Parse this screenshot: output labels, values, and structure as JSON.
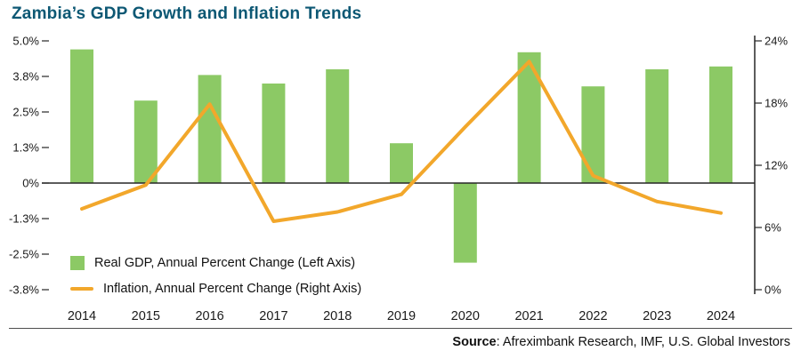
{
  "title": "Zambia’s GDP Growth and Inflation Trends",
  "legend": {
    "gdp": "Real GDP, Annual Percent Change (Left Axis)",
    "inflation": "Inflation, Annual Percent Change (Right Axis)"
  },
  "source": {
    "label": "Source",
    "text": ": Afreximbank Research, IMF, U.S. Global Investors"
  },
  "colors": {
    "title": "#0d5874",
    "bar": "#8cc965",
    "line": "#f2a72b",
    "axis": "#262626",
    "tick_text": "#1a1a1a"
  },
  "chart_data": {
    "type": "bar",
    "subtype": "combo-bar-line",
    "title": "Zambia’s GDP Growth and Inflation Trends",
    "categories": [
      "2014",
      "2015",
      "2016",
      "2017",
      "2018",
      "2019",
      "2020",
      "2021",
      "2022",
      "2023",
      "2024"
    ],
    "series": [
      {
        "name": "Real GDP, Annual Percent Change",
        "type": "bar",
        "axis": "left",
        "values": [
          4.7,
          2.9,
          3.8,
          3.5,
          4.0,
          1.4,
          -2.8,
          4.6,
          3.4,
          4.0,
          4.1
        ]
      },
      {
        "name": "Inflation, Annual Percent Change",
        "type": "line",
        "axis": "right",
        "values": [
          7.8,
          10.1,
          17.9,
          6.6,
          7.5,
          9.2,
          15.7,
          22.0,
          11.0,
          8.5,
          7.4
        ]
      }
    ],
    "left_axis": {
      "ticks": [
        "5.0%",
        "3.8%",
        "2.5%",
        "1.3%",
        "0%",
        "-1.3%",
        "-2.5%",
        "-3.8%"
      ],
      "tick_values": [
        5.0,
        3.75,
        2.5,
        1.25,
        0,
        -1.25,
        -2.5,
        -3.75
      ],
      "max": 5.0,
      "min": -3.75
    },
    "right_axis": {
      "ticks": [
        "24%",
        "18%",
        "12%",
        "6%",
        "0%"
      ],
      "tick_values": [
        24,
        18,
        12,
        6,
        0
      ],
      "max": 24,
      "min": 0
    },
    "grid": false,
    "legend_position": "inside-bottom-left"
  }
}
